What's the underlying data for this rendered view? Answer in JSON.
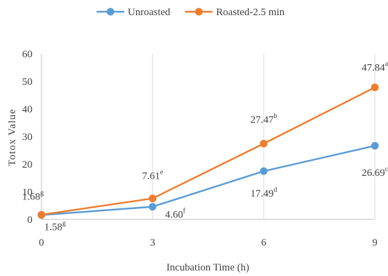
{
  "chart_data": {
    "type": "line",
    "title": "",
    "xlabel": "Incubation Time (h)",
    "ylabel": "Totox Value",
    "x": [
      0,
      3,
      6,
      9
    ],
    "x_ticks": [
      "0",
      "3",
      "6",
      "9"
    ],
    "y_ticks": [
      "0",
      "10",
      "20",
      "30",
      "40",
      "50",
      "60"
    ],
    "xlim": [
      0,
      9
    ],
    "ylim": [
      0,
      60
    ],
    "grid": {
      "horizontal": false,
      "vertical": true
    },
    "legend_position": "top",
    "series": [
      {
        "name": "Unroasted",
        "color": "#5B9BD5",
        "values": [
          1.58,
          4.6,
          17.49,
          26.69
        ],
        "labels": [
          {
            "value": "1.58",
            "sup": "g"
          },
          {
            "value": "4.60",
            "sup": "f"
          },
          {
            "value": "17.49",
            "sup": "d"
          },
          {
            "value": "26.69",
            "sup": "c"
          }
        ]
      },
      {
        "name": "Roasted-2.5 min",
        "color": "#ED7D31",
        "values": [
          1.68,
          7.61,
          27.47,
          47.84
        ],
        "labels": [
          {
            "value": "1.68",
            "sup": "g"
          },
          {
            "value": "7.61",
            "sup": "e"
          },
          {
            "value": "27.47",
            "sup": "b"
          },
          {
            "value": "47.84",
            "sup": "a"
          }
        ]
      }
    ]
  }
}
